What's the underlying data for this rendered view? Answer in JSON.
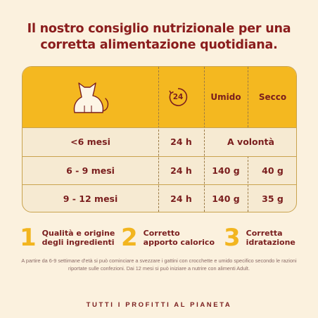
{
  "title": {
    "line1": "Il nostro consiglio nutrizionale per una",
    "line2": "corretta alimentazione quotidiana."
  },
  "table": {
    "headers": {
      "cat_icon": "cat-icon",
      "clock_icon": "24h-clock-icon",
      "clock_label": "24",
      "wet": "Umido",
      "dry": "Secco"
    },
    "rows": [
      {
        "age": "<6 mesi",
        "time": "24 h",
        "combined": "A volontà"
      },
      {
        "age": "6 - 9 mesi",
        "time": "24 h",
        "wet": "140 g",
        "dry": "40 g"
      },
      {
        "age": "9 - 12 mesi",
        "time": "24 h",
        "wet": "140 g",
        "dry": "35 g"
      }
    ]
  },
  "features": [
    {
      "num": "1",
      "line1": "Qualità e origine",
      "line2": "degli ingredienti"
    },
    {
      "num": "2",
      "line1": "Corretto",
      "line2": "apporto calorico"
    },
    {
      "num": "3",
      "line1": "Corretta",
      "line2": "idratazione"
    }
  ],
  "note": "A partire da 6-9 settimane d'età si può cominciare a svezzare i gattini con crocchette e umido specifico secondo le razioni riportate sulle confezioni. Dai 12 mesi si può iniziare a nutrire con alimenti Adult.",
  "footer": "TUTTI I PROFITTI AL PIANETA",
  "colors": {
    "background": "#fbf1de",
    "header_yellow": "#f4b820",
    "accent_number": "#f2b51f",
    "text_maroon": "#7a1e1e"
  }
}
